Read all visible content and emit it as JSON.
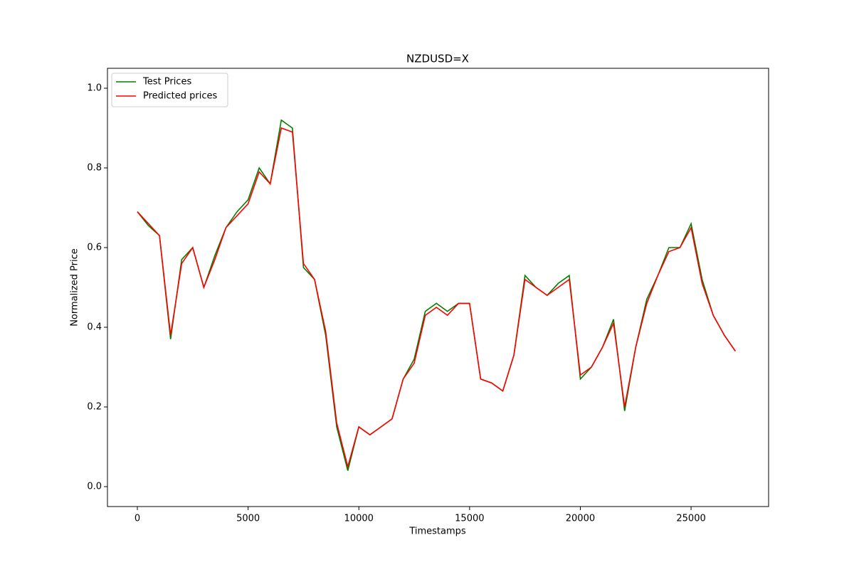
{
  "chart_data": {
    "type": "line",
    "title": "NZDUSD=X",
    "x_label": "Timestamps",
    "y_label": "Normalized Price",
    "x": [
      0,
      500,
      1000,
      1500,
      2000,
      2500,
      3000,
      3500,
      4000,
      4500,
      5000,
      5500,
      6000,
      6500,
      7000,
      7500,
      8000,
      8500,
      9000,
      9500,
      10000,
      10500,
      11000,
      11500,
      12000,
      12500,
      13000,
      13500,
      14000,
      14500,
      15000,
      15500,
      16000,
      16500,
      17000,
      17500,
      18000,
      18500,
      19000,
      19500,
      20000,
      20500,
      21000,
      21500,
      22000,
      22500,
      23000,
      23500,
      24000,
      24500,
      25000,
      25500,
      26000,
      26500,
      27000
    ],
    "series": [
      {
        "name": "Test Prices",
        "color": "#008000",
        "values": [
          0.69,
          0.655,
          0.63,
          0.37,
          0.57,
          0.6,
          0.5,
          0.58,
          0.65,
          0.69,
          0.72,
          0.8,
          0.76,
          0.92,
          0.9,
          0.55,
          0.52,
          0.38,
          0.15,
          0.04,
          0.15,
          0.13,
          0.15,
          0.17,
          0.27,
          0.32,
          0.44,
          0.46,
          0.44,
          0.46,
          0.46,
          0.27,
          0.26,
          0.24,
          0.33,
          0.53,
          0.5,
          0.48,
          0.51,
          0.53,
          0.27,
          0.3,
          0.35,
          0.42,
          0.19,
          0.35,
          0.47,
          0.53,
          0.6,
          0.6,
          0.66,
          0.52,
          0.43,
          0.38,
          0.34
        ]
      },
      {
        "name": "Predicted prices",
        "color": "#ff0000",
        "values": [
          0.69,
          0.66,
          0.63,
          0.38,
          0.56,
          0.6,
          0.5,
          0.57,
          0.65,
          0.68,
          0.71,
          0.79,
          0.76,
          0.9,
          0.89,
          0.56,
          0.52,
          0.39,
          0.16,
          0.05,
          0.15,
          0.13,
          0.15,
          0.17,
          0.27,
          0.31,
          0.43,
          0.45,
          0.43,
          0.46,
          0.46,
          0.27,
          0.26,
          0.24,
          0.33,
          0.52,
          0.5,
          0.48,
          0.5,
          0.52,
          0.28,
          0.3,
          0.35,
          0.41,
          0.2,
          0.35,
          0.46,
          0.53,
          0.59,
          0.6,
          0.65,
          0.51,
          0.43,
          0.38,
          0.34
        ]
      }
    ],
    "xlim": [
      -1350,
      28500
    ],
    "ylim": [
      -0.05,
      1.05
    ],
    "xticks": [
      0,
      5000,
      10000,
      15000,
      20000,
      25000
    ],
    "yticks": [
      {
        "value": 0,
        "label": "0.0"
      },
      0.2,
      0.4,
      0.6,
      0.8,
      {
        "value": 1,
        "label": "1.0"
      }
    ],
    "legend": "upper left"
  }
}
